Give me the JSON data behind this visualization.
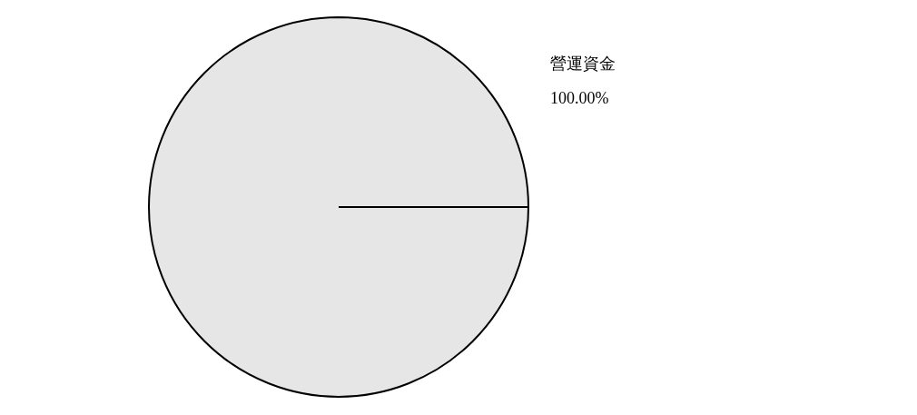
{
  "chart_data": {
    "type": "pie",
    "categories": [
      "營運資金"
    ],
    "values": [
      100
    ],
    "colors": [
      "#e6e6e6"
    ],
    "value_labels": [
      "100.00%"
    ],
    "legend": false
  }
}
